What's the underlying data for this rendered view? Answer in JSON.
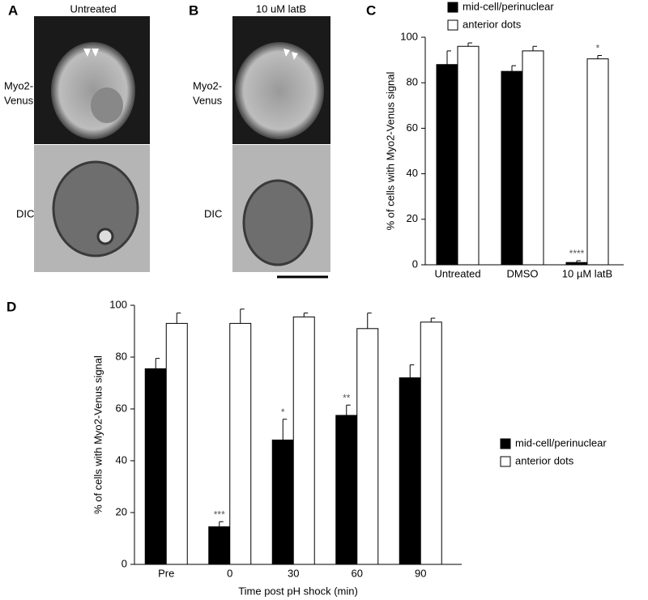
{
  "panels": [
    {
      "letter": "A",
      "title": "Untreated",
      "top_label": [
        "Myo2-",
        "Venus"
      ],
      "bottom_label": "DIC"
    },
    {
      "letter": "B",
      "title": "10 uM latB",
      "top_label": [
        "Myo2-",
        "Venus"
      ],
      "bottom_label": "DIC"
    }
  ],
  "chart_data": [
    {
      "type": "bar",
      "letter": "C",
      "ylabel": "% of cells with Myo2-Venus signal",
      "categories": [
        "Untreated",
        "DMSO",
        "10 µM latB"
      ],
      "series": [
        {
          "name": "mid-cell/perinuclear",
          "color": "#000000",
          "values": [
            88,
            85,
            1
          ],
          "errors": [
            6,
            2.5,
            0.8
          ],
          "annotations": [
            null,
            null,
            "****"
          ]
        },
        {
          "name": "anterior dots",
          "color": "#ffffff",
          "values": [
            96,
            94,
            90.5
          ],
          "errors": [
            1.5,
            2,
            1.5
          ],
          "annotations": [
            null,
            null,
            "*"
          ]
        }
      ],
      "ylim": [
        0,
        100
      ],
      "yticks": [
        0,
        20,
        40,
        60,
        80,
        100
      ],
      "legend": "top"
    },
    {
      "type": "bar",
      "letter": "D",
      "ylabel": "% of cells with Myo2-Venus signal",
      "xlabel": "Time post pH shock (min)",
      "categories": [
        "Pre",
        "0",
        "30",
        "60",
        "90"
      ],
      "series": [
        {
          "name": "mid-cell/perinuclear",
          "color": "#000000",
          "values": [
            75.5,
            14.5,
            48,
            57.5,
            72
          ],
          "errors": [
            4,
            2,
            8,
            4,
            5
          ],
          "annotations": [
            null,
            "***",
            "*",
            "**",
            null
          ]
        },
        {
          "name": "anterior dots",
          "color": "#ffffff",
          "values": [
            93,
            93,
            95.5,
            91,
            93.5
          ],
          "errors": [
            4,
            5.5,
            1.5,
            6,
            1.5
          ],
          "annotations": [
            null,
            null,
            null,
            null,
            null
          ]
        }
      ],
      "ylim": [
        0,
        100
      ],
      "yticks": [
        0,
        20,
        40,
        60,
        80,
        100
      ],
      "legend": "right"
    }
  ]
}
